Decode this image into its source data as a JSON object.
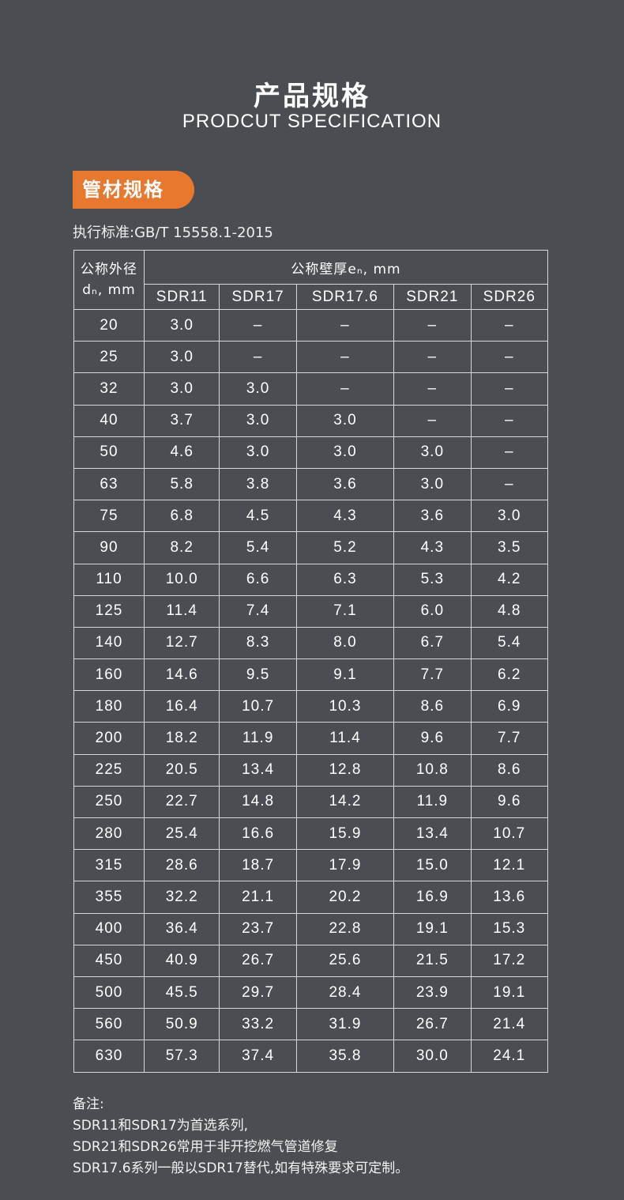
{
  "header": {
    "title_cn": "产品规格",
    "title_en": "PRODCUT SPECIFICATION"
  },
  "section": {
    "badge": "管材规格",
    "standard": "执行标准:GB/T 15558.1-2015"
  },
  "colors": {
    "background": "#4a4d51",
    "accent": "#e8782d"
  },
  "table": {
    "diameter_header_line1": "公称外径",
    "diameter_header_line2": "dₙ, mm",
    "thickness_header": "公称壁厚eₙ, mm",
    "columns": [
      "SDR11",
      "SDR17",
      "SDR17.6",
      "SDR21",
      "SDR26"
    ],
    "rows": [
      [
        "20",
        "3.0",
        "–",
        "–",
        "–",
        "–"
      ],
      [
        "25",
        "3.0",
        "–",
        "–",
        "–",
        "–"
      ],
      [
        "32",
        "3.0",
        "3.0",
        "–",
        "–",
        "–"
      ],
      [
        "40",
        "3.7",
        "3.0",
        "3.0",
        "–",
        "–"
      ],
      [
        "50",
        "4.6",
        "3.0",
        "3.0",
        "3.0",
        "–"
      ],
      [
        "63",
        "5.8",
        "3.8",
        "3.6",
        "3.0",
        "–"
      ],
      [
        "75",
        "6.8",
        "4.5",
        "4.3",
        "3.6",
        "3.0"
      ],
      [
        "90",
        "8.2",
        "5.4",
        "5.2",
        "4.3",
        "3.5"
      ],
      [
        "110",
        "10.0",
        "6.6",
        "6.3",
        "5.3",
        "4.2"
      ],
      [
        "125",
        "11.4",
        "7.4",
        "7.1",
        "6.0",
        "4.8"
      ],
      [
        "140",
        "12.7",
        "8.3",
        "8.0",
        "6.7",
        "5.4"
      ],
      [
        "160",
        "14.6",
        "9.5",
        "9.1",
        "7.7",
        "6.2"
      ],
      [
        "180",
        "16.4",
        "10.7",
        "10.3",
        "8.6",
        "6.9"
      ],
      [
        "200",
        "18.2",
        "11.9",
        "11.4",
        "9.6",
        "7.7"
      ],
      [
        "225",
        "20.5",
        "13.4",
        "12.8",
        "10.8",
        "8.6"
      ],
      [
        "250",
        "22.7",
        "14.8",
        "14.2",
        "11.9",
        "9.6"
      ],
      [
        "280",
        "25.4",
        "16.6",
        "15.9",
        "13.4",
        "10.7"
      ],
      [
        "315",
        "28.6",
        "18.7",
        "17.9",
        "15.0",
        "12.1"
      ],
      [
        "355",
        "32.2",
        "21.1",
        "20.2",
        "16.9",
        "13.6"
      ],
      [
        "400",
        "36.4",
        "23.7",
        "22.8",
        "19.1",
        "15.3"
      ],
      [
        "450",
        "40.9",
        "26.7",
        "25.6",
        "21.5",
        "17.2"
      ],
      [
        "500",
        "45.5",
        "29.7",
        "28.4",
        "23.9",
        "19.1"
      ],
      [
        "560",
        "50.9",
        "33.2",
        "31.9",
        "26.7",
        "21.4"
      ],
      [
        "630",
        "57.3",
        "37.4",
        "35.8",
        "30.0",
        "24.1"
      ]
    ]
  },
  "notes": {
    "label": "备注:",
    "lines": [
      "SDR11和SDR17为首选系列,",
      "SDR21和SDR26常用于非开挖燃气管道修复",
      "SDR17.6系列一般以SDR17替代,如有特殊要求可定制。"
    ]
  }
}
